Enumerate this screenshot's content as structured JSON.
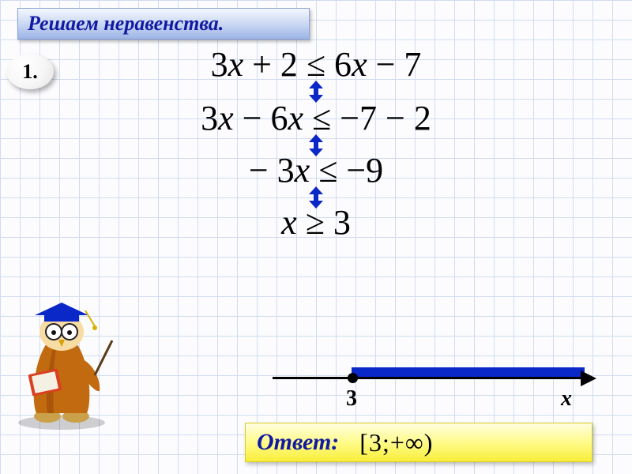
{
  "header": {
    "title": "Решаем неравенства."
  },
  "problem": {
    "number": "1.",
    "steps": [
      "3x + 2 ≤ 6x − 7",
      "3x − 6x ≤ −7 − 2",
      "− 3x ≤ −9",
      "x ≥ 3"
    ],
    "steps_html": [
      "3<span class='x'>x</span> + 2 ≤ 6<span class='x'>x</span> − 7",
      "3<span class='x'>x</span> − 6<span class='x'>x</span> ≤ −7 − 2",
      "− 3<span class='x'>x</span> ≤ −9",
      "<span class='x'>x</span> ≥ 3"
    ],
    "arrow_color": "#0a27c8"
  },
  "number_line": {
    "point_label": "3",
    "axis_label": "x",
    "closed_point": true,
    "band_color": "#0a27c8",
    "direction": "right"
  },
  "answer": {
    "label": "Ответ:",
    "interval": "[3;+∞)"
  },
  "styling": {
    "header_text_color": "#111aa2",
    "header_bg_gradient": [
      "#f4f7ff",
      "#cfdcf3",
      "#9db4e6"
    ],
    "answer_box_gradient": [
      "#fffde0",
      "#fffb8a",
      "#f7ee3a"
    ],
    "grid_color": "#d0dcf0",
    "grid_cell": 25,
    "math_fontsize": 44,
    "header_fontsize": 26,
    "answer_label_fontsize": 30,
    "answer_value_fontsize": 32
  },
  "mascot": {
    "description": "graduate-owl-scholar-icon",
    "cap_color": "#0a27c8",
    "robe_color": "#c26a0f",
    "book_color": "#d94020"
  }
}
